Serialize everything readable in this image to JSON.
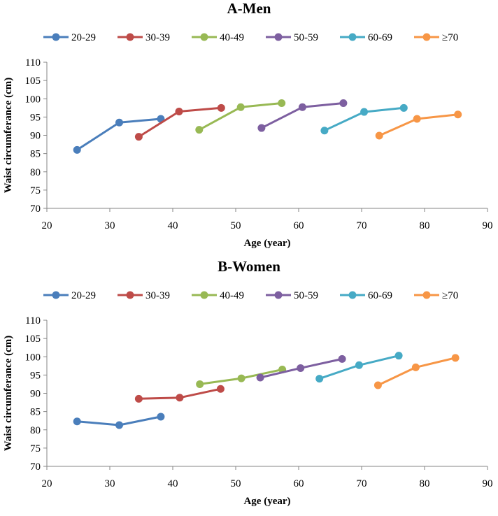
{
  "chart_data": [
    {
      "type": "line",
      "title": "A-Men",
      "xlabel": "Age (year)",
      "ylabel": "Waist circumferance (cm)",
      "xlim": [
        20,
        90
      ],
      "ylim": [
        70,
        110
      ],
      "xticks": [
        "20",
        "30",
        "40",
        "50",
        "60",
        "70",
        "80",
        "90"
      ],
      "yticks": [
        "70",
        "75",
        "80",
        "85",
        "90",
        "95",
        "100",
        "105",
        "110"
      ],
      "legend_position": "top",
      "grid": false,
      "series": [
        {
          "name": "20-29",
          "color": "#4a7ebb",
          "x": [
            24.8,
            31.5,
            38.1
          ],
          "y": [
            86.0,
            93.5,
            94.5
          ]
        },
        {
          "name": "30-39",
          "color": "#be4b48",
          "x": [
            34.6,
            41.0,
            47.7
          ],
          "y": [
            89.6,
            96.5,
            97.5
          ]
        },
        {
          "name": "40-49",
          "color": "#98b954",
          "x": [
            44.2,
            50.8,
            57.3
          ],
          "y": [
            91.5,
            97.7,
            98.8
          ]
        },
        {
          "name": "50-59",
          "color": "#7d5fa0",
          "x": [
            54.1,
            60.6,
            67.1
          ],
          "y": [
            92.0,
            97.7,
            98.8
          ]
        },
        {
          "name": "60-69",
          "color": "#46aac5",
          "x": [
            64.1,
            70.4,
            76.7
          ],
          "y": [
            91.3,
            96.4,
            97.5
          ]
        },
        {
          "name": "≥70",
          "color": "#f79646",
          "x": [
            72.8,
            78.8,
            85.3
          ],
          "y": [
            89.9,
            94.5,
            95.7
          ]
        }
      ]
    },
    {
      "type": "line",
      "title": "B-Women",
      "xlabel": "Age (year)",
      "ylabel": "Waist circumferance (cm)",
      "xlim": [
        20,
        90
      ],
      "ylim": [
        70,
        110
      ],
      "xticks": [
        "20",
        "30",
        "40",
        "50",
        "60",
        "70",
        "80",
        "90"
      ],
      "yticks": [
        "70",
        "75",
        "80",
        "85",
        "90",
        "95",
        "100",
        "105",
        "110"
      ],
      "legend_position": "top",
      "grid": false,
      "series": [
        {
          "name": "20-29",
          "color": "#4a7ebb",
          "x": [
            24.8,
            31.5,
            38.1
          ],
          "y": [
            82.3,
            81.3,
            83.6
          ]
        },
        {
          "name": "30-39",
          "color": "#be4b48",
          "x": [
            34.6,
            41.1,
            47.6
          ],
          "y": [
            88.5,
            88.8,
            91.2
          ]
        },
        {
          "name": "40-49",
          "color": "#98b954",
          "x": [
            44.3,
            50.9,
            57.4
          ],
          "y": [
            92.5,
            94.1,
            96.5
          ]
        },
        {
          "name": "50-59",
          "color": "#7d5fa0",
          "x": [
            53.9,
            60.3,
            66.9
          ],
          "y": [
            94.3,
            96.9,
            99.4
          ]
        },
        {
          "name": "60-69",
          "color": "#46aac5",
          "x": [
            63.3,
            69.6,
            75.9
          ],
          "y": [
            94.0,
            97.7,
            100.3
          ]
        },
        {
          "name": "≥70",
          "color": "#f79646",
          "x": [
            72.6,
            78.6,
            84.9
          ],
          "y": [
            92.2,
            97.1,
            99.7
          ]
        }
      ]
    }
  ]
}
